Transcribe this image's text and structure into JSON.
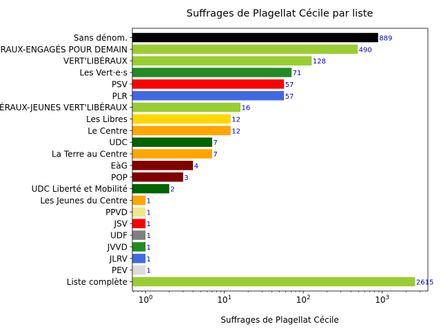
{
  "chart_data": {
    "type": "bar",
    "orientation": "horizontal",
    "title": "Suffrages de Plagellat Cécile par liste",
    "xlabel": "Suffrages de Plagellat Cécile",
    "ylabel": "",
    "xscale": "log",
    "xlim": [
      0.68,
      3800
    ],
    "xticks": [
      {
        "value": 1,
        "base": "10",
        "exp": "0"
      },
      {
        "value": 10,
        "base": "10",
        "exp": "1"
      },
      {
        "value": 100,
        "base": "10",
        "exp": "2"
      },
      {
        "value": 1000,
        "base": "10",
        "exp": "3"
      }
    ],
    "grid": false,
    "label_color": "#0000cc",
    "categories": [
      "Sans dénom.",
      "LES VERT'LIBÉRAUX-ENGAGÉS POUR DEMAIN",
      "VERT'LIBÉRAUX",
      "Les Vert·e·s",
      "PSV",
      "PLR",
      "LES VERT'LIBÉRAUX-JEUNES VERT'LIBÉRAUX",
      "Les Libres",
      "Le Centre",
      "UDC",
      "La Terre au Centre",
      "EàG",
      "POP",
      "UDC Liberté et Mobilité",
      "Les Jeunes du Centre",
      "PPVD",
      "JSV",
      "UDF",
      "JVVD",
      "JLRV",
      "PEV",
      "Liste complète"
    ],
    "values": [
      889,
      490,
      128,
      71,
      57,
      57,
      16,
      12,
      12,
      7,
      7,
      4,
      3,
      2,
      1,
      1,
      1,
      1,
      1,
      1,
      1,
      2615
    ],
    "colors": [
      "#000000",
      "#9acd32",
      "#9acd32",
      "#228b22",
      "#ff0000",
      "#4169e1",
      "#9acd32",
      "#ffd700",
      "#ffa500",
      "#006400",
      "#ffa500",
      "#800000",
      "#800000",
      "#006400",
      "#ffa500",
      "#f0e68c",
      "#ff0000",
      "#808080",
      "#228b22",
      "#4169e1",
      "#dcdcdc",
      "#9acd32"
    ]
  }
}
